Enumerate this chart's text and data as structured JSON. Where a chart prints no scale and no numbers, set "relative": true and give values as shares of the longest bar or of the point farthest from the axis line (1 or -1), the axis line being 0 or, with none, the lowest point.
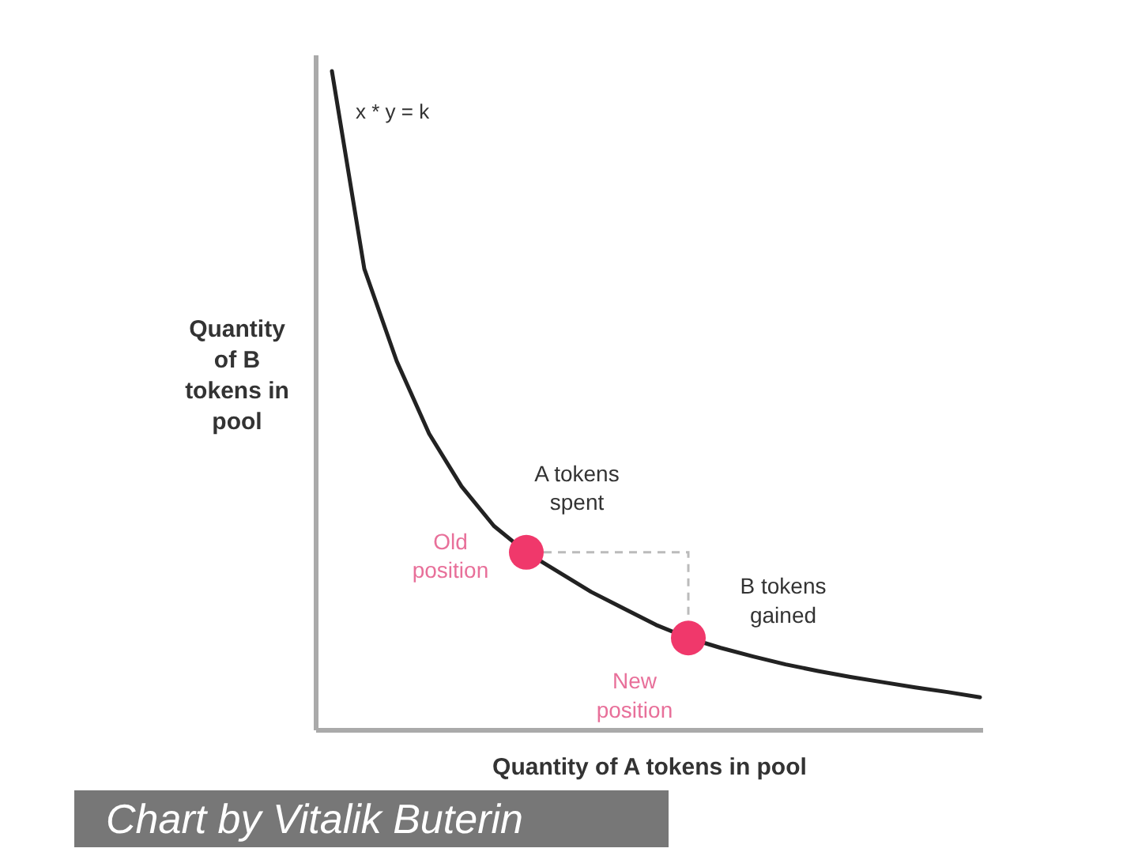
{
  "chart_data": {
    "type": "line",
    "relative": true,
    "xlabel": "Quantity of A tokens in pool",
    "ylabel": "Quantity of B tokens in pool",
    "categories": [
      null,
      null,
      null,
      null,
      null,
      null,
      null,
      null,
      null,
      null,
      null,
      null,
      null,
      null,
      null,
      null,
      null,
      null,
      null,
      null,
      null
    ],
    "series": [
      {
        "color": "#222222",
        "values": [
          1,
          0.7,
          0.56,
          0.45,
          0.37,
          0.31,
          0.27,
          0.24,
          0.21,
          0.185,
          0.16,
          0.14,
          0.125,
          0.112,
          0.1,
          0.09,
          0.081,
          0.073,
          0.065,
          0.058,
          0.05
        ]
      }
    ],
    "annotations": [
      "x * y = k",
      "Old position",
      "A tokens spent",
      "New position",
      "B tokens gained",
      "Chart by Vitalik Buterin"
    ]
  }
}
